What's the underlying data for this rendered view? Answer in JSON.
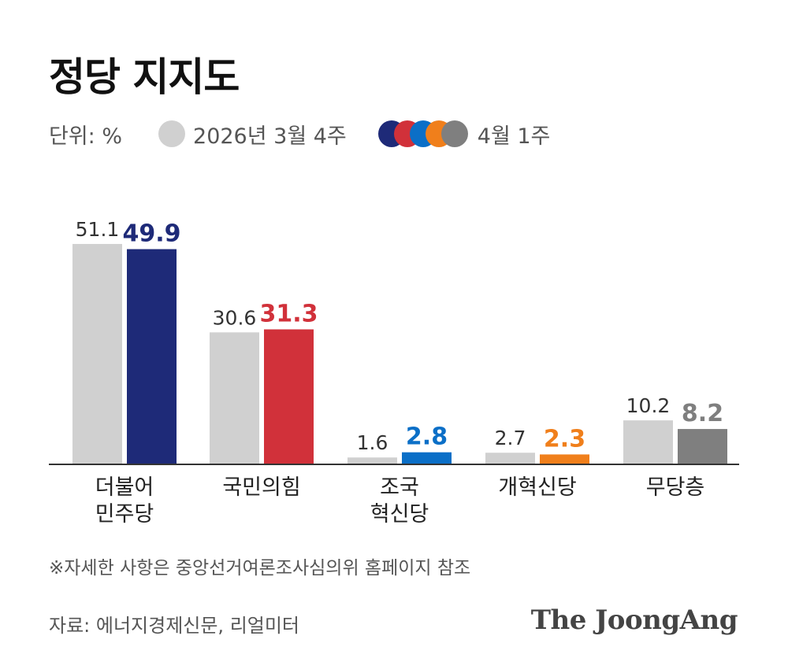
{
  "title": "정당 지지도",
  "legend": {
    "unit": "단위: %",
    "previous_label": "2026년 3월 4주",
    "current_label": "4월 1주"
  },
  "colors": {
    "previous": "#d0d0d0",
    "axis": "#333333",
    "party": [
      "#1e2a78",
      "#d1313a",
      "#0b6fc7",
      "#f07f1b",
      "#7f7f7f"
    ]
  },
  "chart_data": {
    "type": "bar",
    "categories": [
      [
        "더불어",
        "민주당"
      ],
      [
        "국민의힘"
      ],
      [
        "조국",
        "혁신당"
      ],
      [
        "개혁신당"
      ],
      [
        "무당층"
      ]
    ],
    "series": [
      {
        "name": "2026년 3월 4주",
        "values": [
          51.1,
          30.6,
          1.6,
          2.7,
          10.2
        ]
      },
      {
        "name": "4월 1주",
        "values": [
          49.9,
          31.3,
          2.8,
          2.3,
          8.2
        ]
      }
    ],
    "value_labels": {
      "previous": [
        "51.1",
        "30.6",
        "1.6",
        "2.7",
        "10.2"
      ],
      "current": [
        "49.9",
        "31.3",
        "2.8",
        "2.3",
        "8.2"
      ]
    },
    "ylim": [
      0,
      55
    ]
  },
  "note": "※자세한 사항은 중앙선거여론조사심의위 홈페이지 참조",
  "source": "자료: 에너지경제신문, 리얼미터",
  "logo": "The JoongAng"
}
